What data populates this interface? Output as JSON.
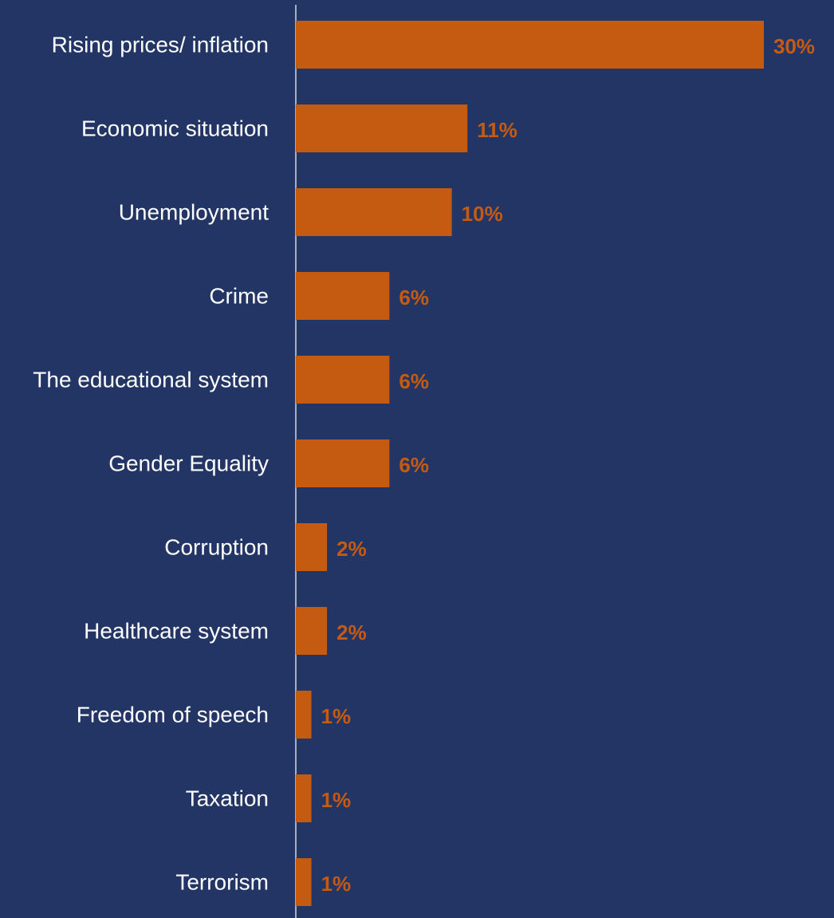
{
  "chart_data": {
    "type": "bar",
    "orientation": "horizontal",
    "title": "",
    "xlabel": "",
    "ylabel": "",
    "categories": [
      "Rising prices/ inflation",
      "Economic situation",
      "Unemployment",
      "Crime",
      "The educational system",
      "Gender Equality",
      "Corruption",
      "Healthcare system",
      "Freedom of speech",
      "Taxation",
      "Terrorism"
    ],
    "values": [
      30,
      11,
      10,
      6,
      6,
      6,
      2,
      2,
      1,
      1,
      1
    ],
    "data_labels": [
      "30%",
      "11%",
      "10%",
      "6%",
      "6%",
      "6%",
      "2%",
      "2%",
      "1%",
      "1%",
      "1%"
    ],
    "xlim": [
      0,
      30
    ],
    "grid": false,
    "legend": "none",
    "colors": {
      "background": "#233565",
      "bar": "#C55A11",
      "label": "#FFFFFF",
      "value_label": "#C55A11",
      "axis": "#FFFFFF"
    }
  }
}
